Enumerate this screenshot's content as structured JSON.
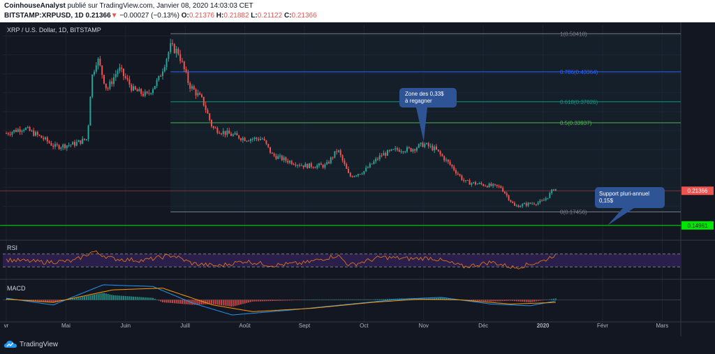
{
  "header": {
    "author": "CoinhouseAnalyst",
    "published_text": "publié sur TradingView.com, Janvier 08, 2020 14:03:03 CET",
    "symbol": "BITSTAMP:XRPUSD, 1D",
    "last": "0.21366",
    "change": "−0.00027 (−0.13%)",
    "o_label": "O:",
    "o_value": "0.21376",
    "h_label": "H:",
    "h_value": "0.21882",
    "l_label": "L:",
    "l_value": "0.21122",
    "c_label": "C:",
    "c_value": "0.21366"
  },
  "footer": {
    "brand": "TradingView"
  },
  "colors": {
    "background": "#131722",
    "up": "#26a69a",
    "down": "#ef5350",
    "fib_0": "#787b86",
    "fib_0786": "#2962ff",
    "fib_0618": "#089981",
    "fib_05": "#4caf50",
    "support_line": "#00e600",
    "rsi_line": "#e0711a",
    "rsi_band": "#2a1f4a",
    "macd_line": "#2196f3",
    "signal_line": "#ff9800",
    "callout": "#2f5495"
  },
  "chart_data": [
    {
      "type": "candlestick",
      "title": "XRP / U.S. Dollar, 1D, BITSTAMP",
      "x_tick_labels": [
        "vr",
        "Mai",
        "Juin",
        "Juill",
        "Août",
        "Sept",
        "Oct",
        "Nov",
        "Déc",
        "2020",
        "Févr",
        "Mars"
      ],
      "ylim": [
        0.13,
        0.52
      ],
      "last_price_label": "0.21366",
      "support_price_label": "0.14961",
      "support_price": 0.14961,
      "fibonacci": [
        {
          "level": "1",
          "price": 0.50418,
          "label": "1(0.50418)"
        },
        {
          "level": "0.786",
          "price": 0.43364,
          "label": "0.786(0.43364)"
        },
        {
          "level": "0.618",
          "price": 0.37826,
          "label": "0.618(0.37826)"
        },
        {
          "level": "0.5",
          "price": 0.33937,
          "label": "0.5(0.33937)"
        },
        {
          "level": "0",
          "price": 0.17456,
          "label": "0(0.17456)"
        }
      ],
      "annotations": [
        {
          "text_lines": [
            "Zone des 0,33$",
            "à regagner"
          ],
          "anchor_date": "Nov 1"
        },
        {
          "text_lines": [
            "Support pluri-annuel",
            "0,15$"
          ],
          "anchor_price": 0.14961
        }
      ],
      "close_path": [
        {
          "x": "Apr 1",
          "y": 0.32
        },
        {
          "x": "Apr 10",
          "y": 0.33
        },
        {
          "x": "Apr 20",
          "y": 0.31
        },
        {
          "x": "Apr 26",
          "y": 0.295
        },
        {
          "x": "May 5",
          "y": 0.3
        },
        {
          "x": "May 12",
          "y": 0.31
        },
        {
          "x": "May 14",
          "y": 0.42
        },
        {
          "x": "May 17",
          "y": 0.46
        },
        {
          "x": "May 22",
          "y": 0.4
        },
        {
          "x": "May 28",
          "y": 0.44
        },
        {
          "x": "Jun 5",
          "y": 0.4
        },
        {
          "x": "Jun 12",
          "y": 0.39
        },
        {
          "x": "Jun 18",
          "y": 0.42
        },
        {
          "x": "Jun 24",
          "y": 0.48
        },
        {
          "x": "Jun 28",
          "y": 0.47
        },
        {
          "x": "Jul 3",
          "y": 0.41
        },
        {
          "x": "Jul 10",
          "y": 0.38
        },
        {
          "x": "Jul 15",
          "y": 0.33
        },
        {
          "x": "Jul 22",
          "y": 0.32
        },
        {
          "x": "Aug 1",
          "y": 0.31
        },
        {
          "x": "Aug 10",
          "y": 0.31
        },
        {
          "x": "Aug 15",
          "y": 0.28
        },
        {
          "x": "Aug 22",
          "y": 0.27
        },
        {
          "x": "Sep 1",
          "y": 0.26
        },
        {
          "x": "Sep 12",
          "y": 0.26
        },
        {
          "x": "Sep 18",
          "y": 0.29
        },
        {
          "x": "Sep 24",
          "y": 0.24
        },
        {
          "x": "Oct 1",
          "y": 0.25
        },
        {
          "x": "Oct 10",
          "y": 0.28
        },
        {
          "x": "Oct 18",
          "y": 0.29
        },
        {
          "x": "Oct 25",
          "y": 0.29
        },
        {
          "x": "Nov 1",
          "y": 0.3
        },
        {
          "x": "Nov 7",
          "y": 0.29
        },
        {
          "x": "Nov 15",
          "y": 0.26
        },
        {
          "x": "Nov 22",
          "y": 0.23
        },
        {
          "x": "Dec 1",
          "y": 0.225
        },
        {
          "x": "Dec 10",
          "y": 0.22
        },
        {
          "x": "Dec 17",
          "y": 0.185
        },
        {
          "x": "Dec 25",
          "y": 0.19
        },
        {
          "x": "Dec 31",
          "y": 0.193
        },
        {
          "x": "Jan 4",
          "y": 0.205
        },
        {
          "x": "Jan 7",
          "y": 0.22
        },
        {
          "x": "Jan 8",
          "y": 0.21366
        }
      ]
    },
    {
      "type": "line",
      "title": "RSI",
      "ylim": [
        0,
        100
      ],
      "bands": [
        30,
        70
      ],
      "series": [
        {
          "values_by_date": [
            {
              "x": "Apr 1",
              "y": 52
            },
            {
              "x": "Apr 20",
              "y": 45
            },
            {
              "x": "May 5",
              "y": 48
            },
            {
              "x": "May 15",
              "y": 78
            },
            {
              "x": "May 25",
              "y": 55
            },
            {
              "x": "Jun 10",
              "y": 50
            },
            {
              "x": "Jun 25",
              "y": 66
            },
            {
              "x": "Jul 5",
              "y": 40
            },
            {
              "x": "Jul 18",
              "y": 33
            },
            {
              "x": "Aug 1",
              "y": 48
            },
            {
              "x": "Aug 15",
              "y": 35
            },
            {
              "x": "Sep 1",
              "y": 42
            },
            {
              "x": "Sep 18",
              "y": 66
            },
            {
              "x": "Sep 24",
              "y": 35
            },
            {
              "x": "Oct 10",
              "y": 60
            },
            {
              "x": "Oct 25",
              "y": 55
            },
            {
              "x": "Nov 5",
              "y": 58
            },
            {
              "x": "Nov 22",
              "y": 30
            },
            {
              "x": "Dec 5",
              "y": 45
            },
            {
              "x": "Dec 17",
              "y": 27
            },
            {
              "x": "Jan 1",
              "y": 48
            },
            {
              "x": "Jan 7",
              "y": 68
            },
            {
              "x": "Jan 8",
              "y": 63
            }
          ]
        }
      ]
    },
    {
      "type": "line",
      "title": "MACD",
      "series": [
        {
          "values_by_date": [
            {
              "x": "Apr 1",
              "y": 0.2
            },
            {
              "x": "Apr 25",
              "y": -0.6
            },
            {
              "x": "May 20",
              "y": 1.8
            },
            {
              "x": "Jun 15",
              "y": 1.6
            },
            {
              "x": "Jul 5",
              "y": -0.4
            },
            {
              "x": "Jul 25",
              "y": -1.8
            },
            {
              "x": "Aug 25",
              "y": -1.2
            },
            {
              "x": "Sep 20",
              "y": -0.6
            },
            {
              "x": "Oct 20",
              "y": 0.1
            },
            {
              "x": "Nov 10",
              "y": 0.3
            },
            {
              "x": "Dec 5",
              "y": -0.5
            },
            {
              "x": "Dec 25",
              "y": -0.7
            },
            {
              "x": "Jan 8",
              "y": -0.1
            }
          ]
        },
        {
          "values_by_date": [
            {
              "x": "Apr 1",
              "y": 0.1
            },
            {
              "x": "Apr 25",
              "y": -0.3
            },
            {
              "x": "May 25",
              "y": 1.2
            },
            {
              "x": "Jun 20",
              "y": 1.4
            },
            {
              "x": "Jul 15",
              "y": -0.6
            },
            {
              "x": "Aug 5",
              "y": -1.4
            },
            {
              "x": "Sep 5",
              "y": -1.0
            },
            {
              "x": "Oct 5",
              "y": -0.3
            },
            {
              "x": "Oct 30",
              "y": 0.1
            },
            {
              "x": "Nov 20",
              "y": 0.0
            },
            {
              "x": "Dec 15",
              "y": -0.5
            },
            {
              "x": "Jan 8",
              "y": -0.3
            }
          ]
        }
      ]
    }
  ]
}
